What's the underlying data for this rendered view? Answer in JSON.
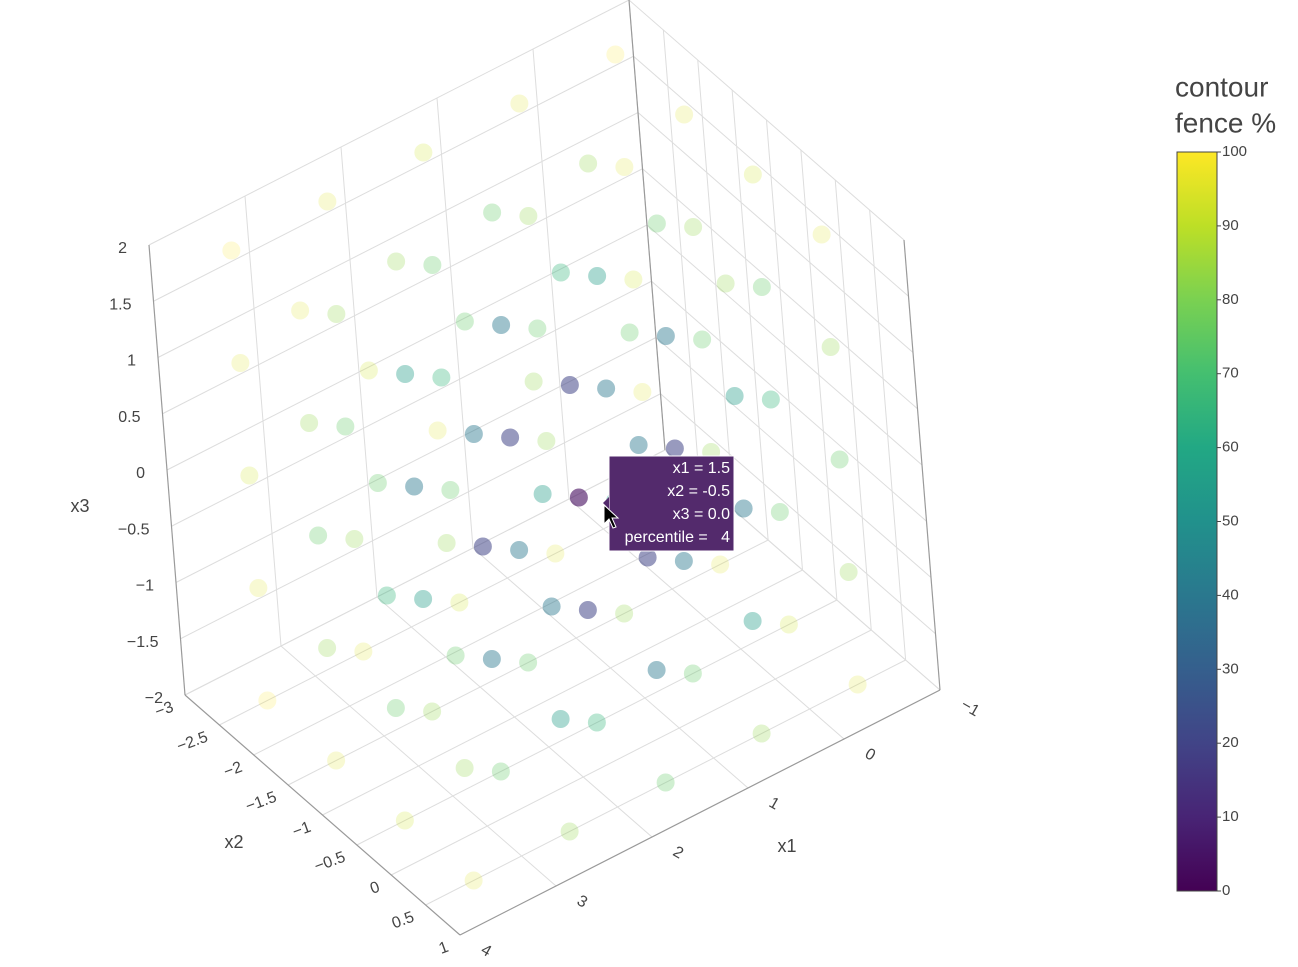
{
  "chart_data": {
    "type": "scatter3d",
    "xlabel": "x1",
    "ylabel": "x2",
    "zlabel": "x3",
    "xlim": [
      -1,
      4
    ],
    "ylim": [
      -3,
      1
    ],
    "zlim": [
      -2,
      2
    ],
    "xticks": [
      {
        "value": -1,
        "label": "−1"
      },
      0,
      1,
      2,
      3,
      4
    ],
    "yticks": [
      {
        "value": -3,
        "label": "−3"
      },
      {
        "value": -2.5,
        "label": "−2.5"
      },
      {
        "value": -2,
        "label": "−2"
      },
      {
        "value": -1.5,
        "label": "−1.5"
      },
      {
        "value": -1,
        "label": "−1"
      },
      {
        "value": -0.5,
        "label": "−0.5"
      },
      0,
      0.5,
      1
    ],
    "zticks": [
      {
        "value": -2,
        "label": "−2"
      },
      {
        "value": -1.5,
        "label": "−1.5"
      },
      {
        "value": -1,
        "label": "−1"
      },
      {
        "value": -0.5,
        "label": "−0.5"
      },
      0,
      0.5,
      1,
      1.5,
      2
    ],
    "x": [
      -0.5,
      -0.5,
      -0.5,
      -0.5,
      -0.5,
      -0.5,
      -0.5,
      -0.5,
      -0.5,
      -0.5,
      -0.5,
      -0.5,
      -0.5,
      -0.5,
      -0.5,
      -0.5,
      -0.5,
      -0.5,
      -0.5,
      -0.5,
      0.5,
      0.5,
      0.5,
      0.5,
      0.5,
      0.5,
      0.5,
      0.5,
      0.5,
      0.5,
      0.5,
      0.5,
      0.5,
      0.5,
      0.5,
      0.5,
      0.5,
      0.5,
      0.5,
      0.5,
      1.5,
      1.5,
      1.5,
      1.5,
      1.5,
      1.5,
      1.5,
      1.5,
      1.5,
      1.5,
      1.5,
      1.5,
      1.5,
      1.5,
      1.5,
      1.5,
      1.5,
      1.5,
      1.5,
      1.5,
      2.5,
      2.5,
      2.5,
      2.5,
      2.5,
      2.5,
      2.5,
      2.5,
      2.5,
      2.5,
      2.5,
      2.5,
      2.5,
      2.5,
      2.5,
      2.5,
      2.5,
      2.5,
      2.5,
      2.5,
      3.5,
      3.5,
      3.5,
      3.5,
      3.5,
      3.5,
      3.5,
      3.5,
      3.5,
      3.5,
      3.5,
      3.5,
      3.5,
      3.5,
      3.5,
      3.5,
      3.5,
      3.5,
      3.5,
      3.5
    ],
    "y": [
      -2.5,
      -2.5,
      -2.5,
      -2.5,
      -2.5,
      -1.5,
      -1.5,
      -1.5,
      -1.5,
      -1.5,
      -0.5,
      -0.5,
      -0.5,
      -0.5,
      -0.5,
      0.5,
      0.5,
      0.5,
      0.5,
      0.5,
      -2.5,
      -2.5,
      -2.5,
      -2.5,
      -2.5,
      -1.5,
      -1.5,
      -1.5,
      -1.5,
      -1.5,
      -0.5,
      -0.5,
      -0.5,
      -0.5,
      -0.5,
      0.5,
      0.5,
      0.5,
      0.5,
      0.5,
      -2.5,
      -2.5,
      -2.5,
      -2.5,
      -2.5,
      -1.5,
      -1.5,
      -1.5,
      -1.5,
      -1.5,
      -0.5,
      -0.5,
      -0.5,
      -0.5,
      -0.5,
      0.5,
      0.5,
      0.5,
      0.5,
      0.5,
      -2.5,
      -2.5,
      -2.5,
      -2.5,
      -2.5,
      -1.5,
      -1.5,
      -1.5,
      -1.5,
      -1.5,
      -0.5,
      -0.5,
      -0.5,
      -0.5,
      -0.5,
      0.5,
      0.5,
      0.5,
      0.5,
      0.5,
      -2.5,
      -2.5,
      -2.5,
      -2.5,
      -2.5,
      -1.5,
      -1.5,
      -1.5,
      -1.5,
      -1.5,
      -0.5,
      -0.5,
      -0.5,
      -0.5,
      -0.5,
      0.5,
      0.5,
      0.5,
      0.5,
      0.5
    ],
    "z": [
      -2,
      -1,
      0,
      1,
      2,
      -2,
      -1,
      0,
      1,
      2,
      -2,
      -1,
      0,
      1,
      2,
      -2,
      -1,
      0,
      1,
      2,
      -2,
      -1,
      0,
      1,
      2,
      -2,
      -1,
      0,
      1,
      2,
      -2,
      -1,
      0,
      1,
      2,
      -2,
      -1,
      0,
      1,
      2,
      -2,
      -1,
      0,
      1,
      2,
      -2,
      -1,
      0,
      1,
      2,
      -2,
      -1,
      0,
      1,
      2,
      -2,
      -1,
      0,
      1,
      2,
      -2,
      -1,
      0,
      1,
      2,
      -2,
      -1,
      0,
      1,
      2,
      -2,
      -1,
      0,
      1,
      2,
      -2,
      -1,
      0,
      1,
      2,
      -2,
      -1,
      0,
      1,
      2,
      -2,
      -1,
      0,
      1,
      2,
      -2,
      -1,
      0,
      1,
      2,
      -2,
      -1,
      0,
      1,
      2
    ],
    "values": [
      99,
      95,
      92,
      95,
      99,
      95,
      83,
      75,
      83,
      95,
      92,
      75,
      65,
      75,
      92,
      95,
      83,
      75,
      83,
      95,
      95,
      83,
      75,
      83,
      95,
      83,
      55,
      40,
      55,
      83,
      75,
      40,
      20,
      40,
      75,
      83,
      55,
      40,
      55,
      83,
      92,
      75,
      65,
      75,
      92,
      75,
      40,
      20,
      40,
      75,
      65,
      20,
      4,
      20,
      65,
      75,
      40,
      20,
      40,
      75,
      95,
      83,
      75,
      83,
      95,
      83,
      55,
      40,
      55,
      83,
      75,
      40,
      20,
      40,
      75,
      83,
      55,
      40,
      55,
      83,
      99,
      95,
      92,
      95,
      99,
      95,
      83,
      75,
      83,
      95,
      92,
      75,
      65,
      75,
      92,
      95,
      83,
      75,
      83,
      95
    ],
    "colorscale": [
      "#440154",
      "#482475",
      "#414487",
      "#355f8d",
      "#2a788e",
      "#21918c",
      "#22a884",
      "#44bf70",
      "#7ad151",
      "#bddf26",
      "#fde725"
    ],
    "colorbar": {
      "title": [
        "contour",
        "fence %"
      ],
      "lim": [
        0,
        100
      ],
      "ticks": [
        0,
        10,
        20,
        30,
        40,
        50,
        60,
        70,
        80,
        90,
        100
      ]
    },
    "hover": {
      "color": "#532a6c",
      "lines": [
        "x1 = 1.5",
        "x2 = -0.5",
        "x3 = 0.0",
        "percentile =   4"
      ]
    }
  }
}
